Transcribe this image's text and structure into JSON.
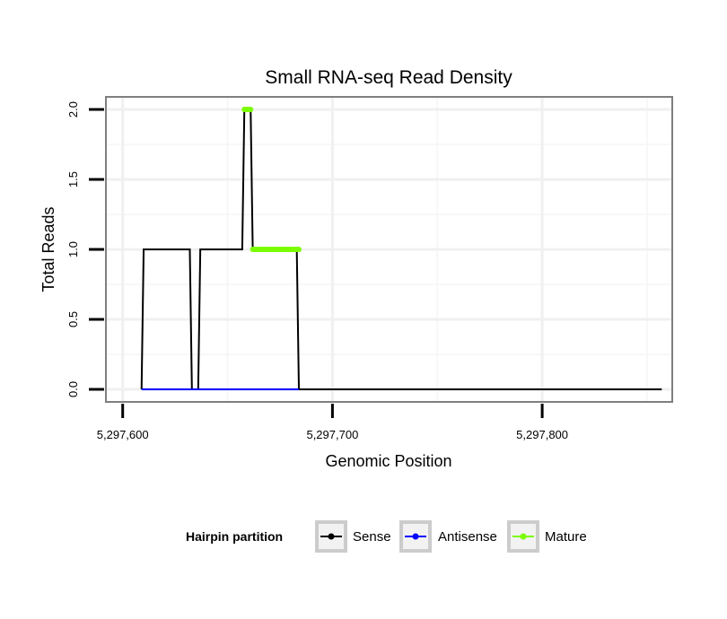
{
  "chart_data": {
    "type": "line",
    "title": "Small RNA-seq Read Density",
    "xlabel": "Genomic Position",
    "ylabel": "Total Reads",
    "xlim": [
      5297592,
      5297862
    ],
    "ylim": [
      -0.09,
      2.09
    ],
    "x_ticks": [
      5297600,
      5297700,
      5297800
    ],
    "x_tick_labels": [
      "5,297,600",
      "5,297,700",
      "5,297,800"
    ],
    "y_ticks": [
      0,
      0.5,
      1,
      1.5,
      2
    ],
    "y_tick_labels": [
      "0.0",
      "0.5",
      "1.0",
      "1.5",
      "2.0"
    ],
    "x_minor_grid": [
      5297650,
      5297750,
      5297850
    ],
    "y_minor_grid": [
      0.25,
      0.75,
      1.25,
      1.75
    ],
    "legend": {
      "title": "Hairpin partition",
      "position": "bottom",
      "entries": [
        {
          "label": "Sense",
          "color": "#000000"
        },
        {
          "label": "Antisense",
          "color": "#0000ff"
        },
        {
          "label": "Mature",
          "color": "#7cfc00"
        }
      ]
    },
    "series": [
      {
        "name": "Sense",
        "color": "#000000",
        "points": [
          [
            5297609,
            0
          ],
          [
            5297610,
            1
          ],
          [
            5297632,
            1
          ],
          [
            5297633,
            0
          ],
          [
            5297636,
            0
          ],
          [
            5297637,
            1
          ],
          [
            5297657,
            1
          ],
          [
            5297658,
            2
          ],
          [
            5297661,
            2
          ],
          [
            5297662,
            1
          ],
          [
            5297683,
            1
          ],
          [
            5297684,
            0
          ],
          [
            5297857,
            0
          ]
        ]
      },
      {
        "name": "Antisense",
        "color": "#0000ff",
        "points": [
          [
            5297609,
            0
          ],
          [
            5297684,
            0
          ]
        ]
      },
      {
        "name": "Mature",
        "color": "#7cfc00",
        "segments": [
          [
            [
              5297658,
              2
            ],
            [
              5297661,
              2
            ]
          ],
          [
            [
              5297662,
              1
            ],
            [
              5297684,
              1
            ]
          ]
        ]
      }
    ]
  }
}
